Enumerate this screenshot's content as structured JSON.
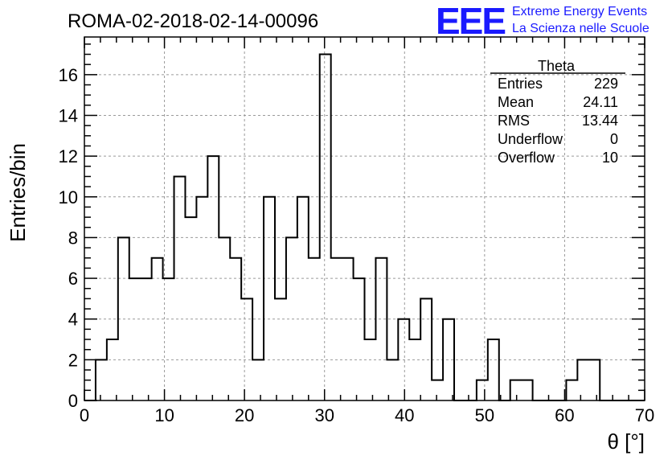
{
  "title": "ROMA-02-2018-02-14-00096",
  "logo": {
    "mark": "EEE",
    "line1": "Extreme Energy Events",
    "line2": "La Scienza nelle Scuole",
    "color": "#1a1aff"
  },
  "stats": {
    "name": "Theta",
    "rows": [
      {
        "label": "Entries",
        "value": "229"
      },
      {
        "label": "Mean",
        "value": "24.11"
      },
      {
        "label": "RMS",
        "value": "13.44"
      },
      {
        "label": "Underflow",
        "value": "0"
      },
      {
        "label": "Overflow",
        "value": "10"
      }
    ]
  },
  "chart_data": {
    "type": "histogram",
    "title": "ROMA-02-2018-02-14-00096",
    "xlabel": "θ [°]",
    "ylabel": "Entries/bin",
    "xlim": [
      0,
      70
    ],
    "ylim": [
      0,
      17.85
    ],
    "bin_width": 1.4,
    "bin_start": 0,
    "x_ticks": [
      0,
      10,
      20,
      30,
      40,
      50,
      60,
      70
    ],
    "y_ticks": [
      0,
      2,
      4,
      6,
      8,
      10,
      12,
      14,
      16
    ],
    "grid": true,
    "values": [
      0,
      2,
      3,
      8,
      6,
      6,
      7,
      6,
      11,
      9,
      10,
      12,
      8,
      7,
      5,
      2,
      10,
      5,
      8,
      10,
      7,
      17,
      7,
      7,
      6,
      3,
      7,
      2,
      4,
      3,
      5,
      1,
      4,
      0,
      0,
      1,
      3,
      0,
      1,
      1,
      0,
      0,
      0,
      1,
      2,
      2,
      0,
      0,
      0,
      0
    ]
  }
}
